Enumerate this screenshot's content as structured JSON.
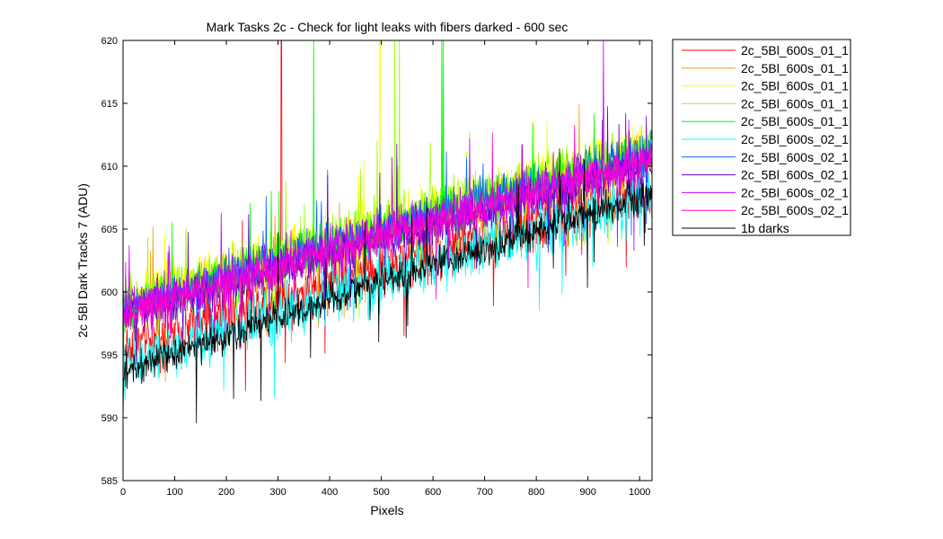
{
  "chart_data": {
    "type": "line",
    "title": "Mark Tasks 2c - Check for light leaks with fibers darked - 600 sec",
    "xlabel": "Pixels",
    "ylabel": "2c 5Bl Dark Tracks 7 (ADU)",
    "xlim": [
      0,
      1024
    ],
    "ylim": [
      585,
      620
    ],
    "xticks": [
      0,
      100,
      200,
      300,
      400,
      500,
      600,
      700,
      800,
      900,
      1000
    ],
    "yticks": [
      585,
      590,
      595,
      600,
      605,
      610,
      615,
      620
    ],
    "legend_position": "outside-right-top",
    "grid": false,
    "series": [
      {
        "name": "2c_5Bl_600s_01_1",
        "color": "#ff0000",
        "start": 595.5,
        "end": 608.0,
        "noise": 1.4,
        "spikes": [
          [
            306,
            621
          ],
          [
            307,
            621
          ]
        ]
      },
      {
        "name": "2c_5Bl_600s_01_1",
        "color": "#ff9900",
        "start": 598.5,
        "end": 610.5,
        "noise": 1.1,
        "spikes": []
      },
      {
        "name": "2c_5Bl_600s_01_1",
        "color": "#ffff00",
        "start": 599.0,
        "end": 611.5,
        "noise": 1.2,
        "spikes": [
          [
            497,
            621
          ],
          [
            498,
            621
          ]
        ]
      },
      {
        "name": "2c_5Bl_600s_01_1",
        "color": "#99ff00",
        "start": 599.0,
        "end": 611.5,
        "noise": 1.2,
        "spikes": [
          [
            526,
            621
          ],
          [
            535,
            621
          ]
        ]
      },
      {
        "name": "2c_5Bl_600s_01_1",
        "color": "#00ff00",
        "start": 598.5,
        "end": 611.0,
        "noise": 1.1,
        "spikes": [
          [
            369,
            621
          ],
          [
            617,
            621
          ],
          [
            620,
            621
          ]
        ]
      },
      {
        "name": "2c_5Bl_600s_02_1",
        "color": "#00ffff",
        "start": 594.0,
        "end": 607.5,
        "noise": 1.3,
        "spikes": []
      },
      {
        "name": "2c_5Bl_600s_02_1",
        "color": "#0066ff",
        "start": 598.5,
        "end": 611.0,
        "noise": 1.1,
        "spikes": []
      },
      {
        "name": "2c_5Bl_600s_02_1",
        "color": "#6600cc",
        "start": 598.0,
        "end": 610.0,
        "noise": 1.0,
        "spikes": []
      },
      {
        "name": "2c_5Bl_600s_02_1",
        "color": "#cc00ff",
        "start": 598.5,
        "end": 610.5,
        "noise": 1.1,
        "spikes": [
          [
            930,
            620
          ]
        ]
      },
      {
        "name": "2c_5Bl_600s_02_1",
        "color": "#ff00cc",
        "start": 598.0,
        "end": 610.5,
        "noise": 0.9,
        "spikes": []
      },
      {
        "name": "1b darks",
        "color": "#000000",
        "start": 593.5,
        "end": 607.8,
        "noise": 0.8,
        "spikes": []
      }
    ]
  }
}
